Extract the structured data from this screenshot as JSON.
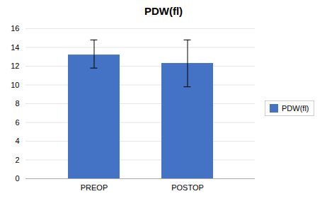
{
  "chart_data": {
    "type": "bar",
    "title": "PDW(fl)",
    "categories": [
      "PREOP",
      "POSTOP"
    ],
    "series": [
      {
        "name": "PDW(fl)",
        "color": "#4472C4",
        "values": [
          13.2,
          12.3
        ],
        "errors_upper": [
          1.6,
          2.5
        ],
        "errors_lower": [
          1.4,
          2.5
        ]
      }
    ],
    "ylim": [
      0,
      16
    ],
    "yticks": [
      0,
      2,
      4,
      6,
      8,
      10,
      12,
      14,
      16
    ],
    "grid": true,
    "legend": "right"
  }
}
